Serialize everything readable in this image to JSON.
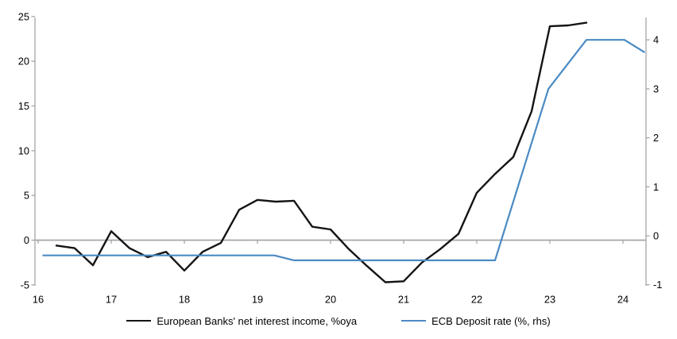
{
  "chart_data": {
    "type": "line",
    "title": "",
    "legend_position": "bottom",
    "grid": "zero-line-only",
    "x_axis": {
      "ticks": [
        16,
        17,
        18,
        19,
        20,
        21,
        22,
        23,
        24
      ],
      "min": 2015.96,
      "max": 2024.32
    },
    "left_axis": {
      "ticks": [
        25,
        20,
        15,
        10,
        5,
        0,
        -5
      ],
      "min": -5,
      "max": 25
    },
    "right_axis": {
      "ticks": [
        4,
        3,
        2,
        1,
        0,
        -1
      ],
      "min": -1.1,
      "max": 4.45
    },
    "series": [
      {
        "name": "European Banks' net interest income, %oya",
        "axis": "left",
        "color": "#141414",
        "frequency": "quarterly",
        "points": [
          [
            2016.25,
            -0.6
          ],
          [
            2016.5,
            -0.9
          ],
          [
            2016.75,
            -2.8
          ],
          [
            2017.0,
            1.0
          ],
          [
            2017.25,
            -0.9
          ],
          [
            2017.5,
            -1.9
          ],
          [
            2017.75,
            -1.3
          ],
          [
            2018.0,
            -3.4
          ],
          [
            2018.25,
            -1.3
          ],
          [
            2018.5,
            -0.3
          ],
          [
            2018.75,
            3.4
          ],
          [
            2019.0,
            4.5
          ],
          [
            2019.25,
            4.3
          ],
          [
            2019.5,
            4.4
          ],
          [
            2019.75,
            1.5
          ],
          [
            2020.0,
            1.2
          ],
          [
            2020.25,
            -1.0
          ],
          [
            2020.5,
            -2.9
          ],
          [
            2020.75,
            -4.7
          ],
          [
            2021.0,
            -4.6
          ],
          [
            2021.25,
            -2.5
          ],
          [
            2021.5,
            -1.0
          ],
          [
            2021.75,
            0.7
          ],
          [
            2022.0,
            5.3
          ],
          [
            2022.25,
            7.4
          ],
          [
            2022.5,
            9.3
          ],
          [
            2022.75,
            14.4
          ],
          [
            2023.0,
            23.9
          ],
          [
            2023.25,
            24.0
          ],
          [
            2023.5,
            24.3
          ]
        ]
      },
      {
        "name": "ECB Deposit rate (%, rhs)",
        "axis": "right",
        "color": "#4a8ac4",
        "points": [
          [
            2016.07,
            -0.4
          ],
          [
            2019.23,
            -0.4
          ],
          [
            2019.5,
            -0.5
          ],
          [
            2022.25,
            -0.5
          ],
          [
            2022.98,
            3.0
          ],
          [
            2023.5,
            4.0
          ],
          [
            2024.02,
            4.0
          ],
          [
            2024.29,
            3.75
          ]
        ]
      }
    ]
  }
}
